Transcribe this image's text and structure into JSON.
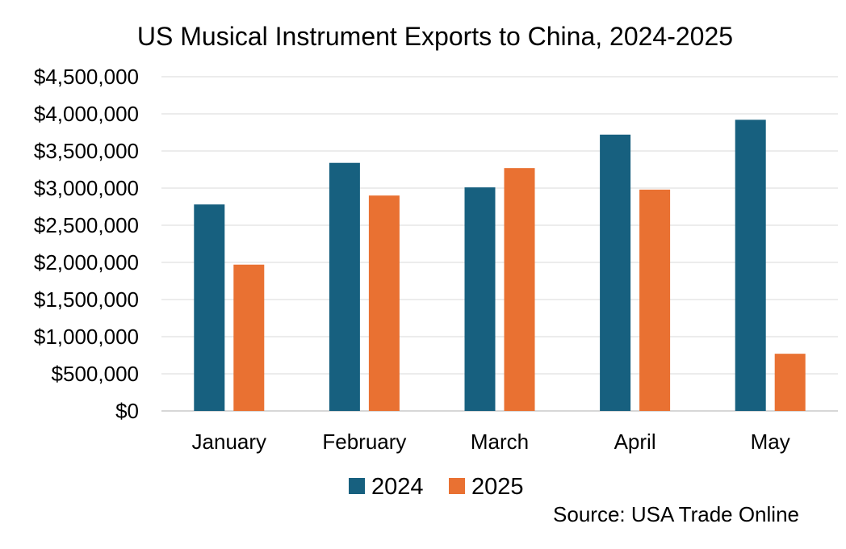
{
  "chart_data": {
    "type": "bar",
    "title": "US Musical Instrument Exports to China, 2024-2025",
    "categories": [
      "January",
      "February",
      "March",
      "April",
      "May"
    ],
    "series": [
      {
        "name": "2024",
        "values": [
          2780000,
          3340000,
          3010000,
          3720000,
          3920000
        ],
        "color": "#17607f"
      },
      {
        "name": "2025",
        "values": [
          1970000,
          2900000,
          3270000,
          2980000,
          770000
        ],
        "color": "#e97132"
      }
    ],
    "ylim": [
      0,
      4500000
    ],
    "yticks": [
      0,
      500000,
      1000000,
      1500000,
      2000000,
      2500000,
      3000000,
      3500000,
      4000000,
      4500000
    ],
    "ytick_labels": [
      "$0",
      "$500,000",
      "$1,000,000",
      "$1,500,000",
      "$2,000,000",
      "$2,500,000",
      "$3,000,000",
      "$3,500,000",
      "$4,000,000",
      "$4,500,000"
    ],
    "grid": true,
    "legend_position": "bottom",
    "source": "Source: USA Trade Online"
  }
}
